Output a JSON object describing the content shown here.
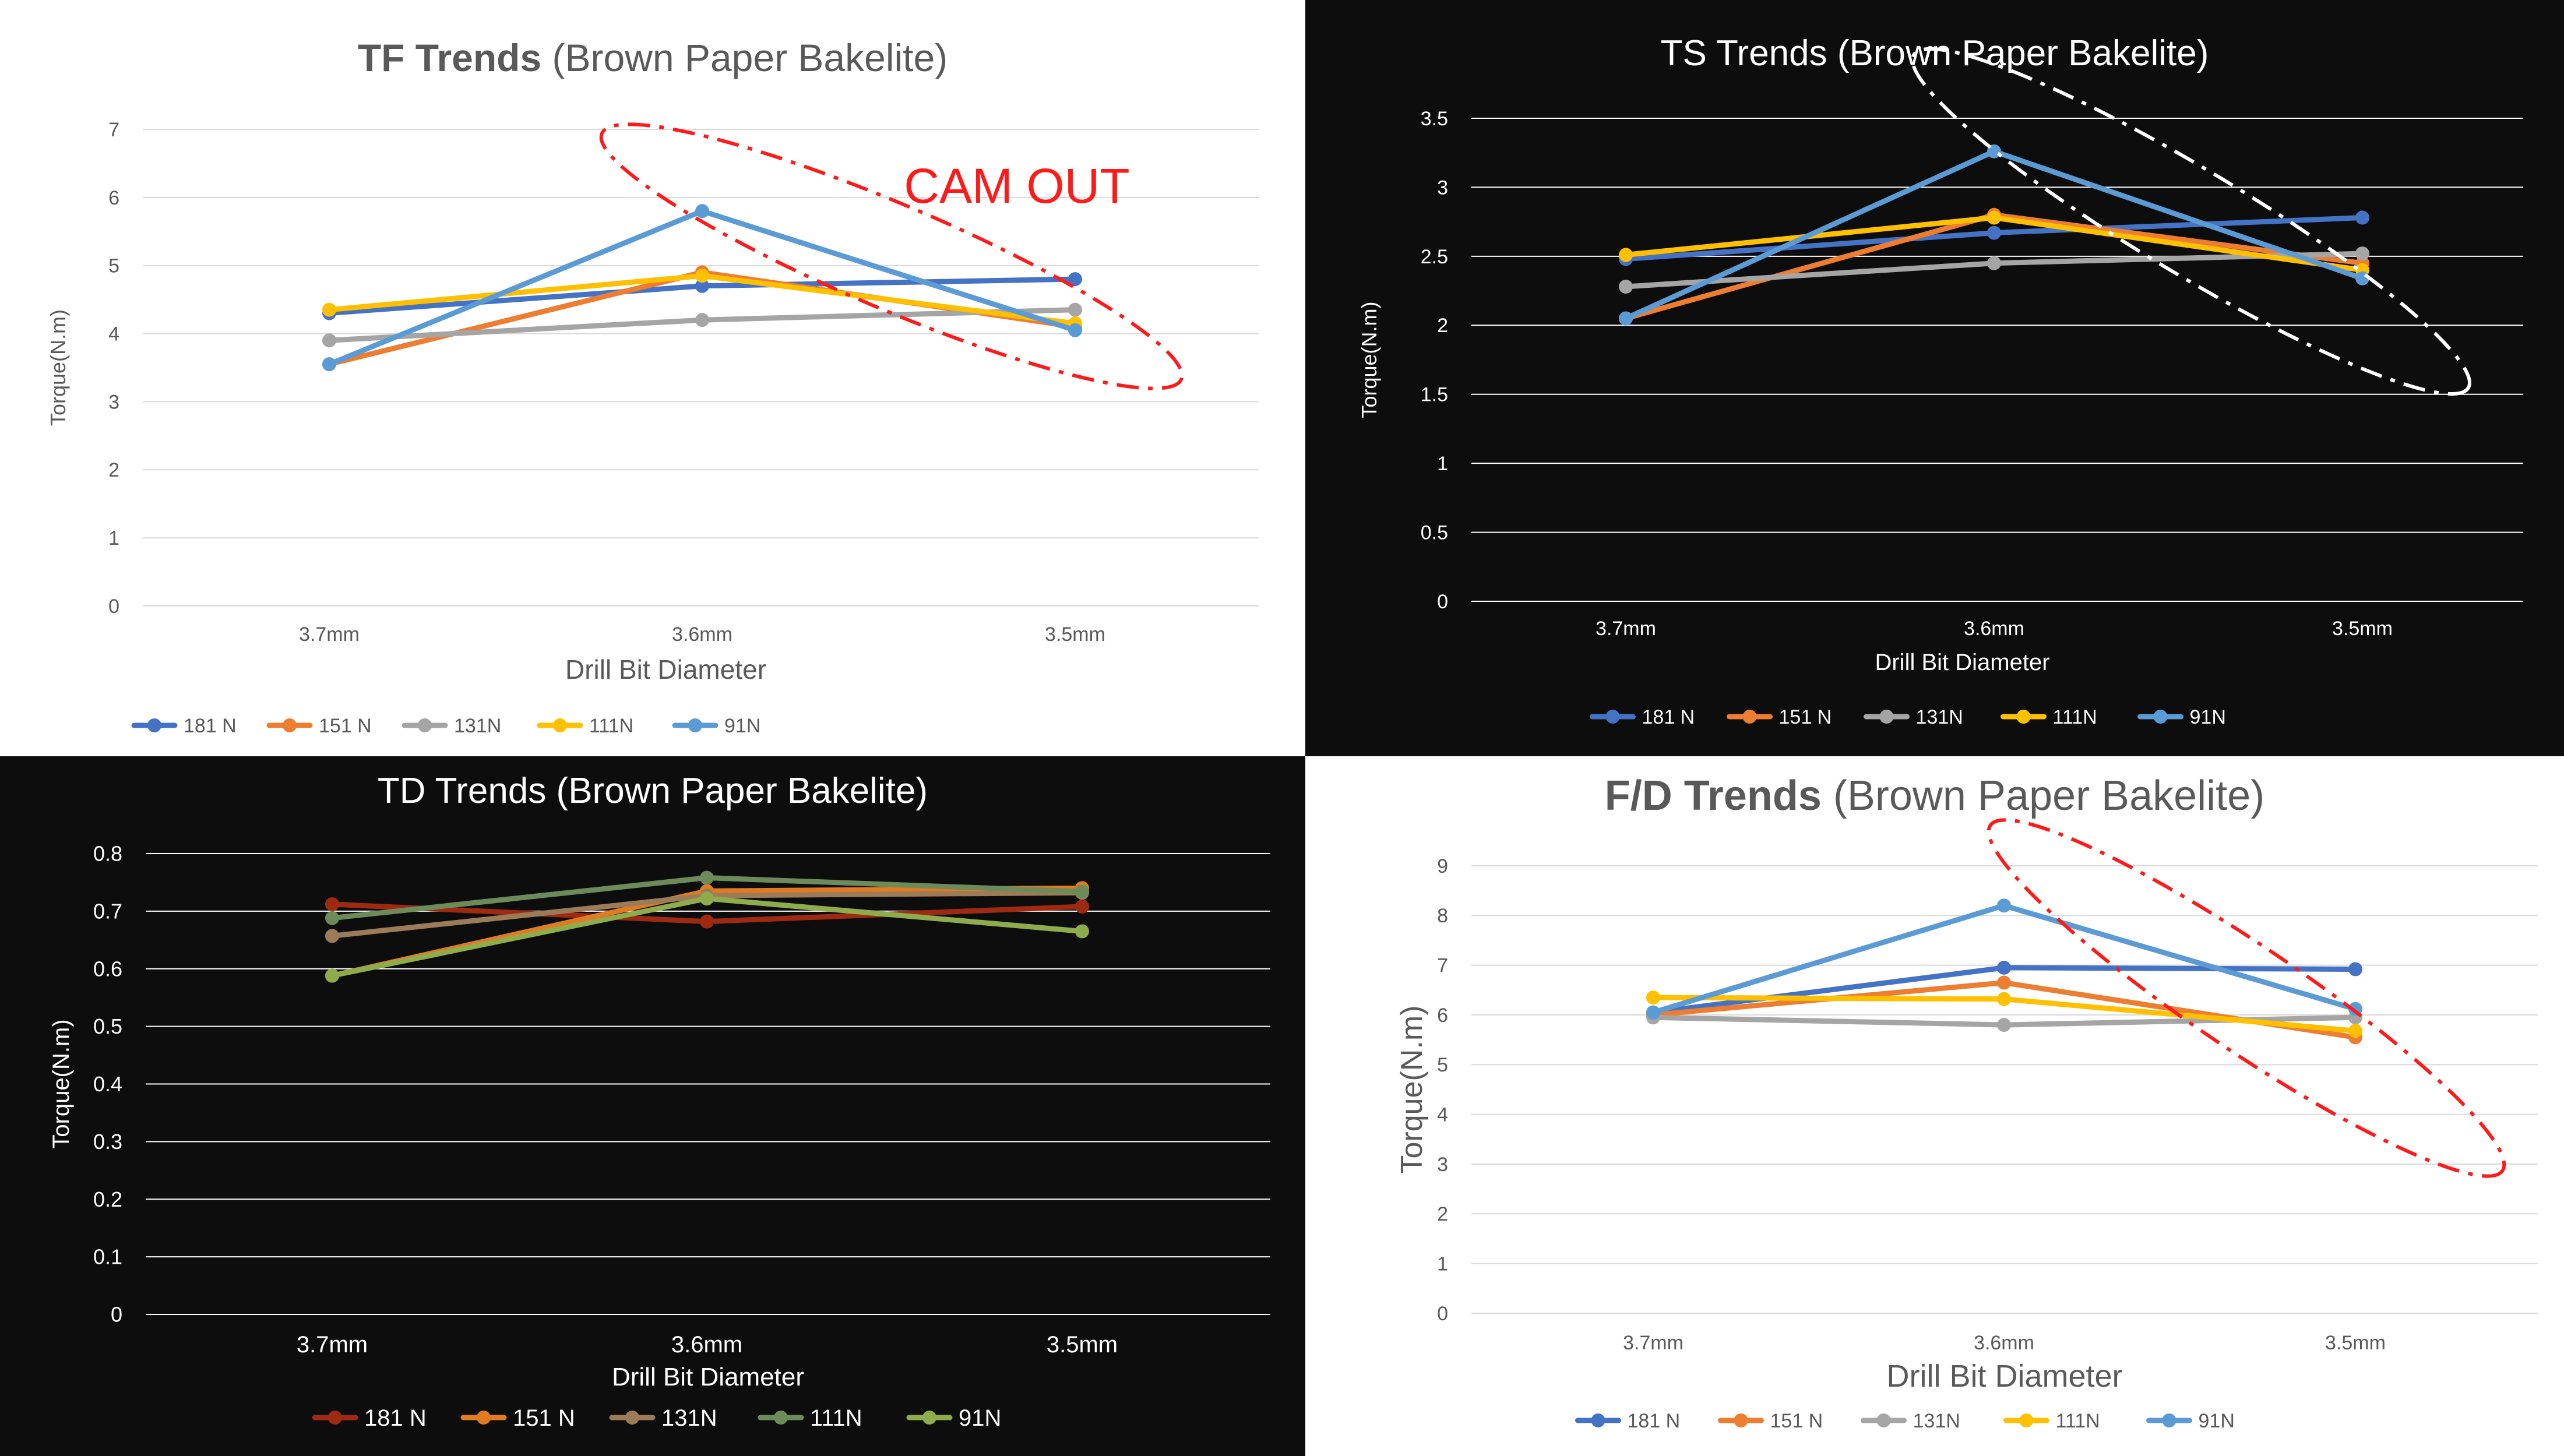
{
  "chart_data": [
    {
      "type": "line",
      "title_bold": "TF Trends",
      "title_rest": " (Brown Paper Bakelite)",
      "xlabel": "Drill Bit Diameter",
      "ylabel": "Torque(N.m)",
      "categories": [
        "3.7mm",
        "3.6mm",
        "3.5mm"
      ],
      "ylim": [
        0,
        7
      ],
      "yticks": [
        "0",
        "1",
        "2",
        "3",
        "4",
        "5",
        "6",
        "7"
      ],
      "grid": true,
      "legend_position": "bottom-left",
      "annotation": "CAM OUT",
      "series": [
        {
          "name": "181 N",
          "color": "#4472c4",
          "values": [
            4.3,
            4.7,
            4.8
          ]
        },
        {
          "name": "151 N",
          "color": "#ed7d31",
          "values": [
            3.55,
            4.9,
            4.1
          ]
        },
        {
          "name": "131N",
          "color": "#a5a5a5",
          "values": [
            3.9,
            4.2,
            4.35
          ]
        },
        {
          "name": "111N",
          "color": "#ffc000",
          "values": [
            4.35,
            4.85,
            4.15
          ]
        },
        {
          "name": "91N",
          "color": "#5b9bd5",
          "values": [
            3.55,
            5.8,
            4.05
          ]
        }
      ]
    },
    {
      "type": "line",
      "title_bold": "",
      "title_rest": "TS Trends (Brown Paper Bakelite)",
      "xlabel": "Drill Bit Diameter",
      "ylabel": "Torque(N.m)",
      "categories": [
        "3.7mm",
        "3.6mm",
        "3.5mm"
      ],
      "ylim": [
        0,
        3.5
      ],
      "yticks": [
        "0",
        "0.5",
        "1",
        "1.5",
        "2",
        "2.5",
        "3",
        "3.5"
      ],
      "grid": true,
      "legend_position": "bottom-center",
      "series": [
        {
          "name": "181 N",
          "color": "#4472c4",
          "values": [
            2.48,
            2.67,
            2.78
          ]
        },
        {
          "name": "151 N",
          "color": "#ed7d31",
          "values": [
            2.05,
            2.8,
            2.45
          ]
        },
        {
          "name": "131N",
          "color": "#a5a5a5",
          "values": [
            2.28,
            2.45,
            2.52
          ]
        },
        {
          "name": "111N",
          "color": "#ffc000",
          "values": [
            2.51,
            2.78,
            2.4
          ]
        },
        {
          "name": "91N",
          "color": "#5b9bd5",
          "values": [
            2.05,
            3.26,
            2.34
          ]
        }
      ]
    },
    {
      "type": "line",
      "title_bold": "",
      "title_rest": "TD Trends (Brown Paper Bakelite)",
      "xlabel": "Drill Bit Diameter",
      "ylabel": "Torque(N.m)",
      "categories": [
        "3.7mm",
        "3.6mm",
        "3.5mm"
      ],
      "ylim": [
        0,
        0.8
      ],
      "yticks": [
        "0",
        "0.1",
        "0.2",
        "0.3",
        "0.4",
        "0.5",
        "0.6",
        "0.7",
        "0.8"
      ],
      "grid": true,
      "legend_position": "bottom-left",
      "series": [
        {
          "name": "181 N",
          "color": "#9e2a12",
          "values": [
            0.712,
            0.682,
            0.708
          ]
        },
        {
          "name": "151 N",
          "color": "#e07b22",
          "values": [
            0.588,
            0.735,
            0.74
          ]
        },
        {
          "name": "131N",
          "color": "#9c7c58",
          "values": [
            0.657,
            0.727,
            0.732
          ]
        },
        {
          "name": "111N",
          "color": "#6d8a5a",
          "values": [
            0.688,
            0.758,
            0.734
          ]
        },
        {
          "name": "91N",
          "color": "#8fac4c",
          "values": [
            0.588,
            0.722,
            0.665
          ]
        }
      ]
    },
    {
      "type": "line",
      "title_bold": "F/D Trends",
      "title_rest": " (Brown Paper Bakelite)",
      "xlabel": "Drill Bit Diameter",
      "ylabel": "Torque(N.m)",
      "categories": [
        "3.7mm",
        "3.6mm",
        "3.5mm"
      ],
      "ylim": [
        0,
        9
      ],
      "yticks": [
        "0",
        "1",
        "2",
        "3",
        "4",
        "5",
        "6",
        "7",
        "8",
        "9"
      ],
      "grid": true,
      "legend_position": "bottom-center",
      "series": [
        {
          "name": "181 N",
          "color": "#4472c4",
          "values": [
            6.05,
            6.95,
            6.92
          ]
        },
        {
          "name": "151 N",
          "color": "#ed7d31",
          "values": [
            6.0,
            6.65,
            5.55
          ]
        },
        {
          "name": "131N",
          "color": "#a5a5a5",
          "values": [
            5.95,
            5.8,
            5.95
          ]
        },
        {
          "name": "111N",
          "color": "#ffc000",
          "values": [
            6.35,
            6.32,
            5.68
          ]
        },
        {
          "name": "91N",
          "color": "#5b9bd5",
          "values": [
            6.05,
            8.2,
            6.12
          ]
        }
      ]
    }
  ]
}
